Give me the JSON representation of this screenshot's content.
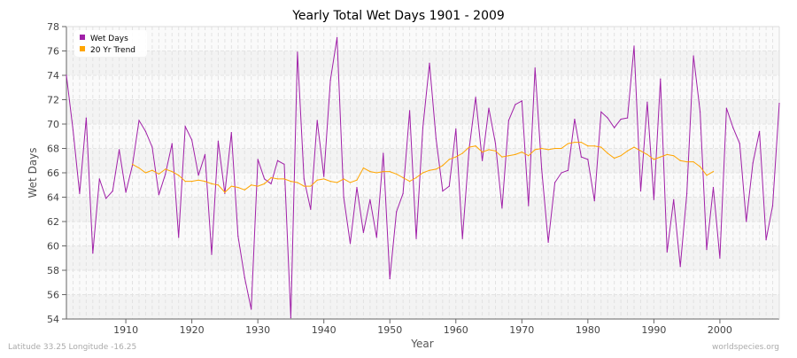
{
  "chart_data": {
    "type": "line",
    "title": "Yearly Total Wet Days 1901 - 2009",
    "xlabel": "Year",
    "ylabel": "Wet Days",
    "xlim": [
      1901,
      2009
    ],
    "ylim": [
      54,
      78
    ],
    "x_ticks": [
      1910,
      1920,
      1930,
      1940,
      1950,
      1960,
      1970,
      1980,
      1990,
      2000
    ],
    "y_ticks": [
      54,
      56,
      58,
      60,
      62,
      64,
      66,
      68,
      70,
      72,
      74,
      76,
      78
    ],
    "grid": true,
    "legend_position": "top-left",
    "series": [
      {
        "name": "Wet Days",
        "color": "#a020a8",
        "x_start": 1901,
        "values": [
          74.0,
          69.5,
          64.3,
          70.5,
          59.4,
          65.5,
          63.9,
          64.5,
          67.9,
          64.4,
          66.6,
          70.3,
          69.4,
          68.1,
          64.2,
          65.9,
          68.4,
          60.7,
          69.8,
          68.7,
          65.8,
          67.5,
          59.3,
          68.6,
          64.3,
          69.3,
          60.8,
          57.4,
          54.8,
          67.1,
          65.5,
          65.1,
          67.0,
          66.7,
          54.1,
          75.9,
          65.5,
          63.0,
          70.3,
          65.7,
          73.6,
          77.1,
          64.0,
          60.2,
          64.8,
          61.1,
          63.8,
          60.7,
          67.6,
          57.3,
          62.8,
          64.3,
          71.1,
          60.6,
          69.7,
          75.0,
          68.8,
          64.5,
          64.9,
          69.6,
          60.6,
          67.9,
          72.2,
          67.0,
          71.3,
          68.4,
          63.1,
          70.3,
          71.6,
          71.9,
          63.3,
          74.6,
          66.3,
          60.3,
          65.2,
          66.0,
          66.2,
          70.4,
          67.3,
          67.1,
          63.7,
          71.0,
          70.5,
          69.7,
          70.4,
          70.5,
          76.4,
          64.5,
          71.8,
          63.8,
          73.7,
          59.5,
          63.8,
          58.3,
          64.3,
          75.6,
          71.0,
          59.7,
          64.8,
          59.0,
          71.3,
          69.7,
          68.4,
          62.0,
          66.8,
          69.4,
          60.5,
          63.3,
          71.7
        ]
      },
      {
        "name": "20 Yr Trend",
        "color": "#ffa500",
        "x_start": 1911,
        "values": [
          66.7,
          66.4,
          66.0,
          66.2,
          65.9,
          66.3,
          66.1,
          65.8,
          65.3,
          65.3,
          65.4,
          65.3,
          65.1,
          65.0,
          64.4,
          64.9,
          64.8,
          64.6,
          65.0,
          64.9,
          65.1,
          65.6,
          65.5,
          65.5,
          65.3,
          65.2,
          64.9,
          64.9,
          65.4,
          65.5,
          65.3,
          65.2,
          65.5,
          65.2,
          65.4,
          66.4,
          66.1,
          66.0,
          66.1,
          66.1,
          65.9,
          65.6,
          65.3,
          65.6,
          66.0,
          66.2,
          66.3,
          66.6,
          67.1,
          67.3,
          67.6,
          68.1,
          68.2,
          67.7,
          67.9,
          67.8,
          67.3,
          67.4,
          67.5,
          67.7,
          67.4,
          67.9,
          68.0,
          67.9,
          68.0,
          68.0,
          68.4,
          68.5,
          68.5,
          68.2,
          68.2,
          68.1,
          67.6,
          67.2,
          67.4,
          67.8,
          68.1,
          67.8,
          67.5,
          67.1,
          67.3,
          67.5,
          67.4,
          67.0,
          66.9,
          66.9,
          66.5,
          65.8,
          66.1
        ]
      }
    ]
  },
  "footer": {
    "location": "Latitude 33.25 Longitude -16.25",
    "source": "worldspecies.org"
  }
}
